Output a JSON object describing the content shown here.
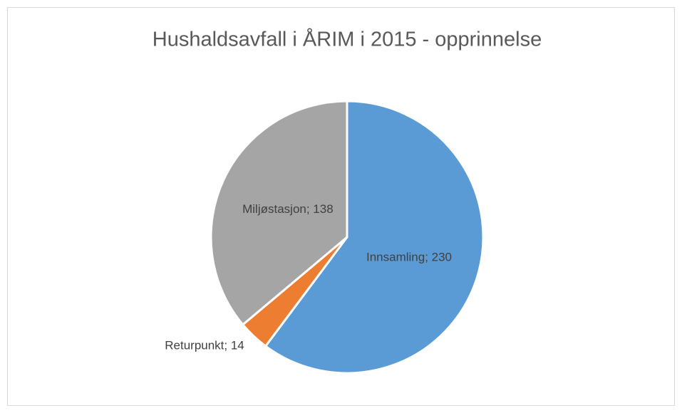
{
  "chart_data": {
    "type": "pie",
    "title": "Hushaldsavfall i ÅRIM i 2015 - opprinnelse",
    "values": [
      230,
      14,
      138
    ],
    "value_labels": [
      "Innsamling; 230",
      "Returpunkt; 14",
      "Miljøstasjon; 138"
    ],
    "colors": [
      "#5b9bd5",
      "#ed7d31",
      "#a5a5a5"
    ]
  }
}
